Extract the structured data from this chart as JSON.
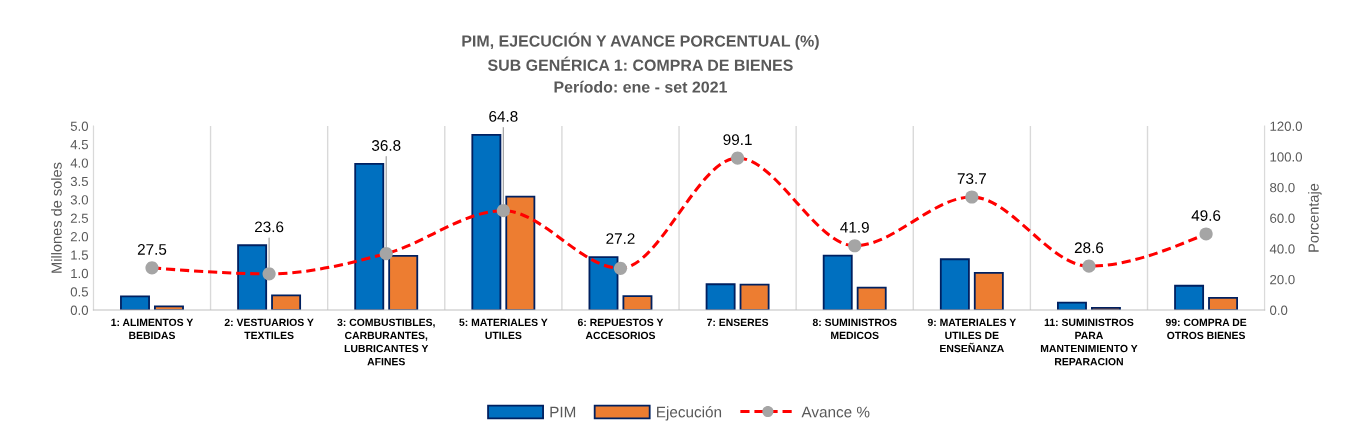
{
  "chart_data": {
    "type": "bar",
    "title": "PIM, EJECUCIÓN Y AVANCE PORCENTUAL (%)",
    "subtitle": "SUB GENÉRICA 1: COMPRA DE BIENES\nPeríodo: ene - set 2021",
    "ylabel": "Millones de soles",
    "y2label": "Porcentaje",
    "categories": [
      "1: ALIMENTOS Y BEBIDAS",
      "2: VESTUARIOS Y TEXTILES",
      "3: COMBUSTIBLES, CARBURANTES, LUBRICANTES Y AFINES",
      "5: MATERIALES Y UTILES",
      "6: REPUESTOS Y ACCESORIOS",
      "7: ENSERES",
      "8: SUMINISTROS MEDICOS",
      "9: MATERIALES Y UTILES DE ENSEÑANZA",
      "11: SUMINISTROS PARA MANTENIMIENTO Y REPARACION",
      "99: COMPRA DE OTROS BIENES"
    ],
    "series": [
      {
        "name": "PIM",
        "color": "#0070c0",
        "values": [
          0.37,
          1.76,
          3.97,
          4.76,
          1.44,
          0.7,
          1.48,
          1.38,
          0.2,
          0.66
        ]
      },
      {
        "name": "Ejecución",
        "color": "#ed7d31",
        "values": [
          0.1,
          0.4,
          1.47,
          3.08,
          0.38,
          0.69,
          0.61,
          1.01,
          0.06,
          0.33
        ]
      },
      {
        "name": "Avance %",
        "type": "line",
        "axis": "y2",
        "color": "#ff0000",
        "colors": [
          "#a5a5a5",
          "#a5a5a5",
          "#a5a5a5",
          "#a5a5a5",
          "#a5a5a5",
          "#a5a5a5",
          "#a5a5a5",
          "#a5a5a5",
          "#a5a5a5",
          "#a5a5a5"
        ],
        "marker": "circle",
        "line_style": "dashed",
        "values": [
          27.5,
          23.6,
          36.8,
          64.8,
          27.2,
          99.1,
          41.9,
          73.7,
          28.6,
          49.6
        ],
        "value_labels": [
          "27.5",
          "23.6",
          "36.8",
          "64.8",
          "27.2",
          "99.1",
          "41.9",
          "73.7",
          "28.6",
          "49.6"
        ]
      }
    ],
    "ylim": [
      0,
      5
    ],
    "yticks": [
      {
        "value": 0,
        "label": "0.0"
      },
      {
        "value": 0.5,
        "label": "0.5"
      },
      {
        "value": 1,
        "label": "1.0"
      },
      {
        "value": 1.5,
        "label": "1.5"
      },
      {
        "value": 2,
        "label": "2.0"
      },
      {
        "value": 2.5,
        "label": "2.5"
      },
      {
        "value": 3,
        "label": "3.0"
      },
      {
        "value": 3.5,
        "label": "3.5"
      },
      {
        "value": 4,
        "label": "4.0"
      },
      {
        "value": 4.5,
        "label": "4.5"
      },
      {
        "value": 5,
        "label": "5.0"
      }
    ],
    "y2lim": [
      0,
      120
    ],
    "y2ticks": [
      {
        "value": 0,
        "label": "0.0"
      },
      {
        "value": 20,
        "label": "20.0"
      },
      {
        "value": 40,
        "label": "40.0"
      },
      {
        "value": 60,
        "label": "60.0"
      },
      {
        "value": 80,
        "label": "80.0"
      },
      {
        "value": 100,
        "label": "100.0"
      },
      {
        "value": 120,
        "label": "120.0"
      }
    ],
    "grid": "x",
    "legend": "bottom"
  }
}
